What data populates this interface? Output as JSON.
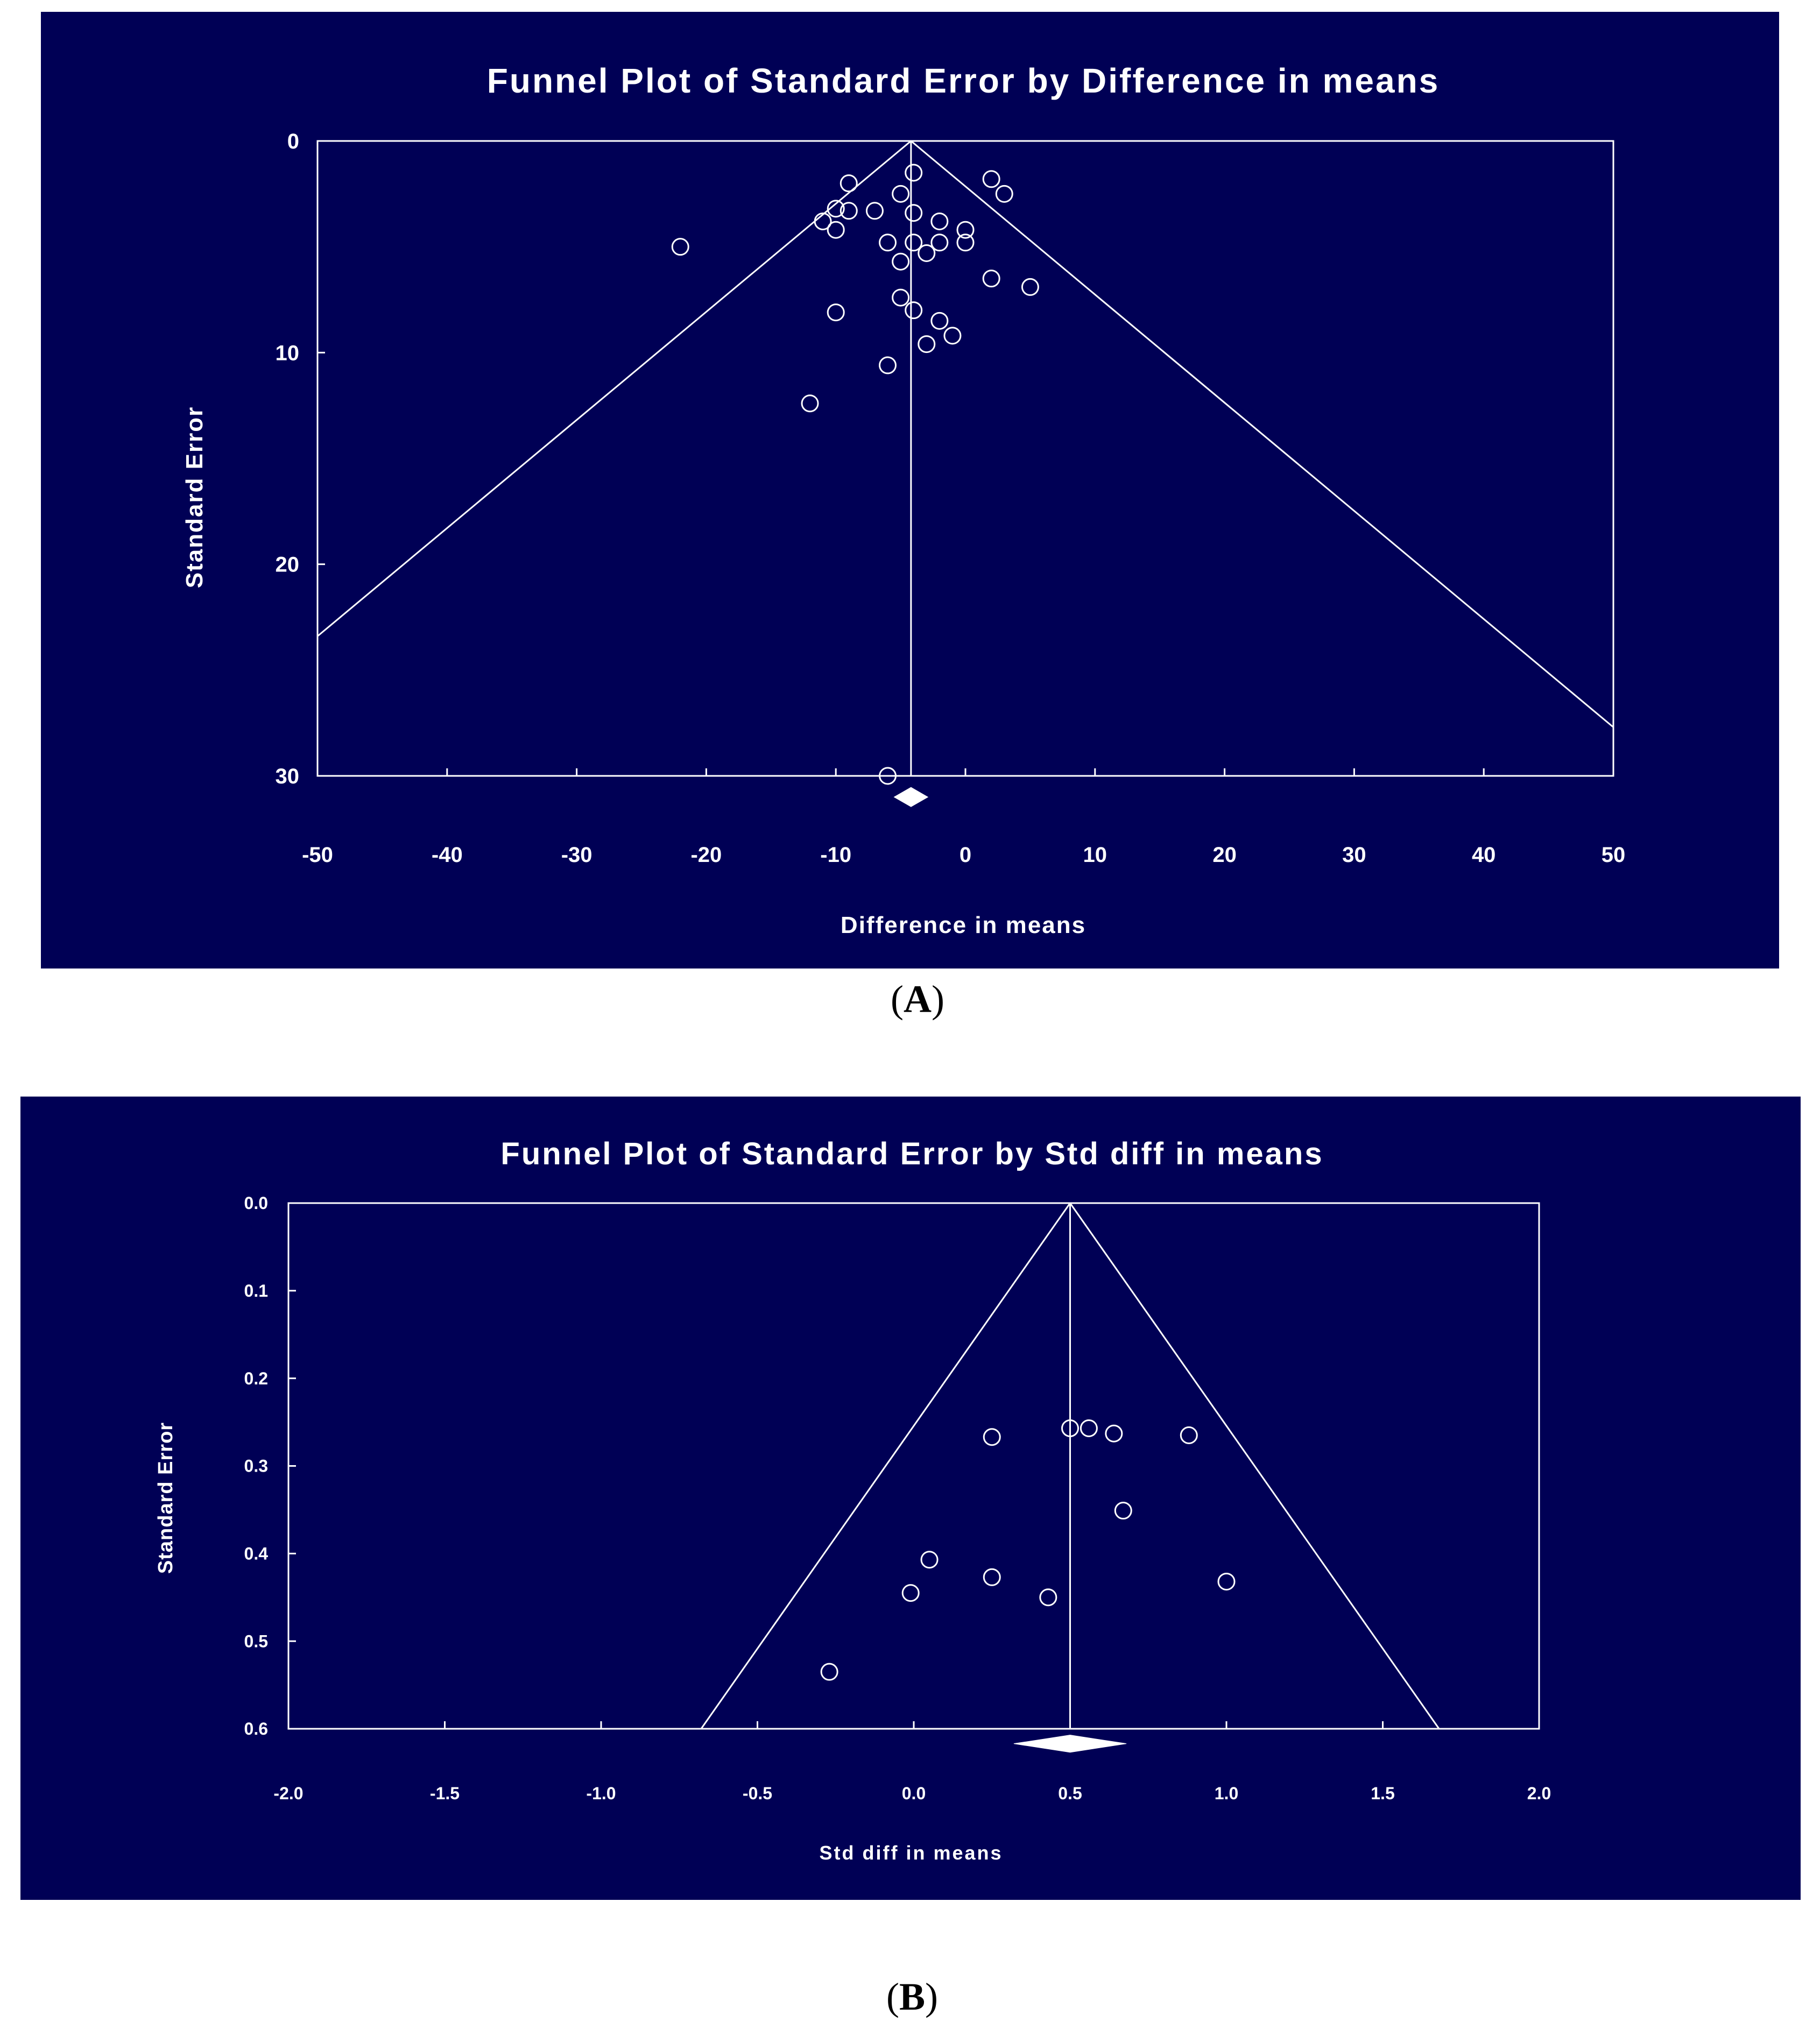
{
  "captions": {
    "a_open": "(",
    "a_letter": "A",
    "a_close": ")",
    "b_open": "(",
    "b_letter": "B",
    "b_close": ")"
  },
  "colors": {
    "background": "#000055",
    "foreground": "#ffffff"
  },
  "chart_data": [
    {
      "id": "A",
      "type": "scatter",
      "title": "Funnel Plot of Standard Error by Difference in means",
      "xlabel": "Difference in means",
      "ylabel": "Standard Error",
      "xlim": [
        -50,
        50
      ],
      "ylim": [
        0,
        30
      ],
      "y_inverted": true,
      "xticks": [
        -50,
        -40,
        -30,
        -20,
        -10,
        0,
        10,
        20,
        30,
        40,
        50
      ],
      "xtick_labels": [
        "-50",
        "-40",
        "-30",
        "-20",
        "-10",
        "0",
        "10",
        "20",
        "30",
        "40",
        "50"
      ],
      "yticks": [
        0,
        10,
        20,
        30
      ],
      "ytick_labels": [
        "0",
        "10",
        "20",
        "30"
      ],
      "pooled_effect": -4.2,
      "funnel_apex": [
        -4.2,
        0
      ],
      "funnel_left_end": [
        -50,
        23.4
      ],
      "funnel_right_end": [
        50,
        27.7
      ],
      "diamond": {
        "center": -4.2,
        "half_width": 1.3,
        "se": 31
      },
      "points": [
        [
          -4,
          1.5
        ],
        [
          -9,
          2
        ],
        [
          2,
          1.8
        ],
        [
          3,
          2.5
        ],
        [
          -5,
          2.5
        ],
        [
          -10,
          3.2
        ],
        [
          -9,
          3.3
        ],
        [
          -7,
          3.3
        ],
        [
          -4,
          3.4
        ],
        [
          -11,
          3.8
        ],
        [
          -10,
          4.2
        ],
        [
          -2,
          3.8
        ],
        [
          0,
          4.2
        ],
        [
          -6,
          4.8
        ],
        [
          -4,
          4.8
        ],
        [
          -2,
          4.8
        ],
        [
          0,
          4.8
        ],
        [
          -22,
          5
        ],
        [
          -3,
          5.3
        ],
        [
          -5,
          5.7
        ],
        [
          2,
          6.5
        ],
        [
          5,
          6.9
        ],
        [
          -5,
          7.4
        ],
        [
          -10,
          8.1
        ],
        [
          -4,
          8
        ],
        [
          -2,
          8.5
        ],
        [
          -1,
          9.2
        ],
        [
          -3,
          9.6
        ],
        [
          -6,
          10.6
        ],
        [
          -12,
          12.4
        ],
        [
          -6,
          30
        ]
      ]
    },
    {
      "id": "B",
      "type": "scatter",
      "title": "Funnel Plot of Standard Error by Std diff in means",
      "xlabel": "Std diff in means",
      "ylabel": "Standard Error",
      "xlim": [
        -2.0,
        2.0
      ],
      "ylim": [
        0.0,
        0.6
      ],
      "y_inverted": true,
      "xticks": [
        -2.0,
        -1.5,
        -1.0,
        -0.5,
        0.0,
        0.5,
        1.0,
        1.5,
        2.0
      ],
      "xtick_labels": [
        "-2.0",
        "-1.5",
        "-1.0",
        "-0.5",
        "0.0",
        "0.5",
        "1.0",
        "1.5",
        "2.0"
      ],
      "yticks": [
        0.0,
        0.1,
        0.2,
        0.3,
        0.4,
        0.5,
        0.6
      ],
      "ytick_labels": [
        "0.0",
        "0.1",
        "0.2",
        "0.3",
        "0.4",
        "0.5",
        "0.6"
      ],
      "pooled_effect": 0.5,
      "funnel_apex": [
        0.5,
        0.0
      ],
      "funnel_left_end": [
        -0.68,
        0.6
      ],
      "funnel_right_end": [
        1.68,
        0.6
      ],
      "diamond": {
        "center": 0.5,
        "half_width": 0.18,
        "se": 0.617
      },
      "points": [
        [
          0.5,
          0.257
        ],
        [
          0.56,
          0.257
        ],
        [
          0.64,
          0.263
        ],
        [
          0.88,
          0.265
        ],
        [
          0.25,
          0.267
        ],
        [
          0.67,
          0.351
        ],
        [
          0.05,
          0.407
        ],
        [
          0.25,
          0.427
        ],
        [
          1.0,
          0.432
        ],
        [
          -0.01,
          0.445
        ],
        [
          0.43,
          0.45
        ],
        [
          -0.27,
          0.535
        ]
      ]
    }
  ]
}
